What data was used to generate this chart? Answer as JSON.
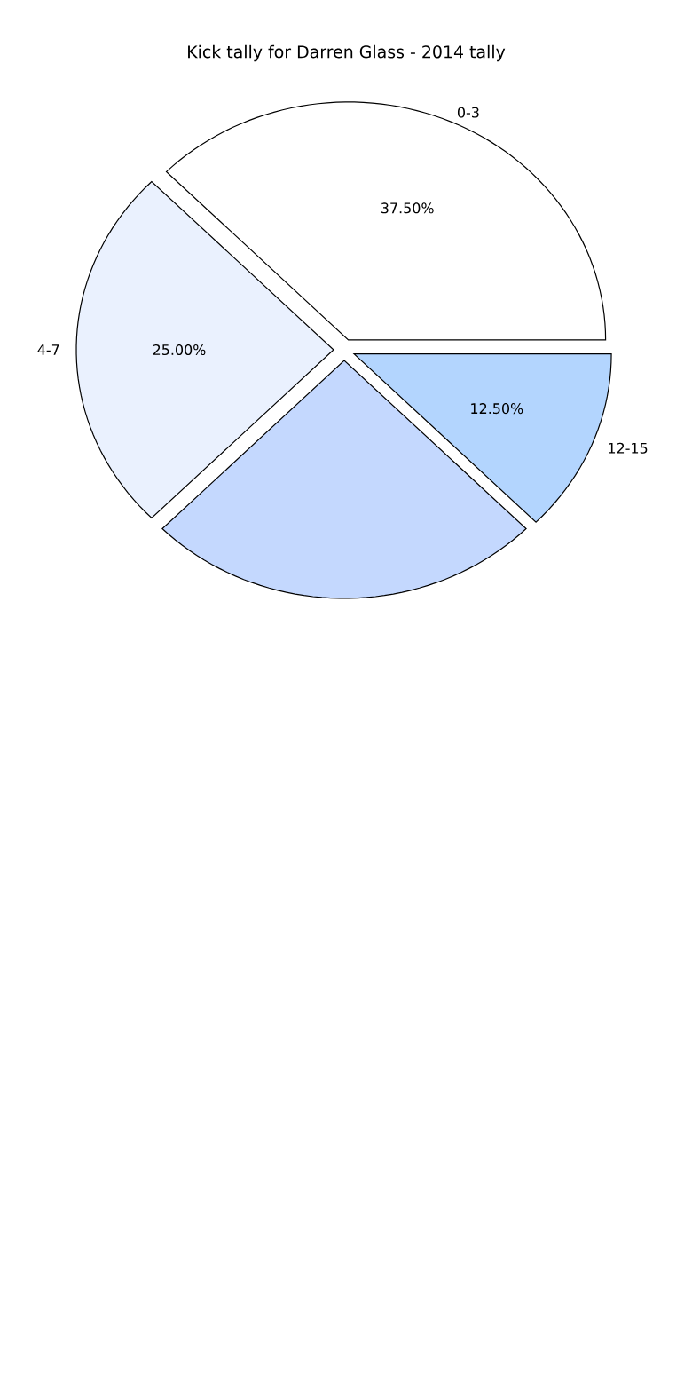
{
  "chart_data": {
    "type": "pie",
    "title": "Kick tally for Darren Glass - 2014 tally",
    "categories": [
      "0-3",
      "4-7",
      null,
      "12-15"
    ],
    "values": [
      37.5,
      25,
      25,
      12.5
    ],
    "colors": [
      "#ffffff",
      "#eaf1fe",
      "#c4d8fe",
      "#b3d5fe"
    ],
    "value_labels": [
      "37.50%",
      "25.00%",
      null,
      "12.50%"
    ]
  }
}
